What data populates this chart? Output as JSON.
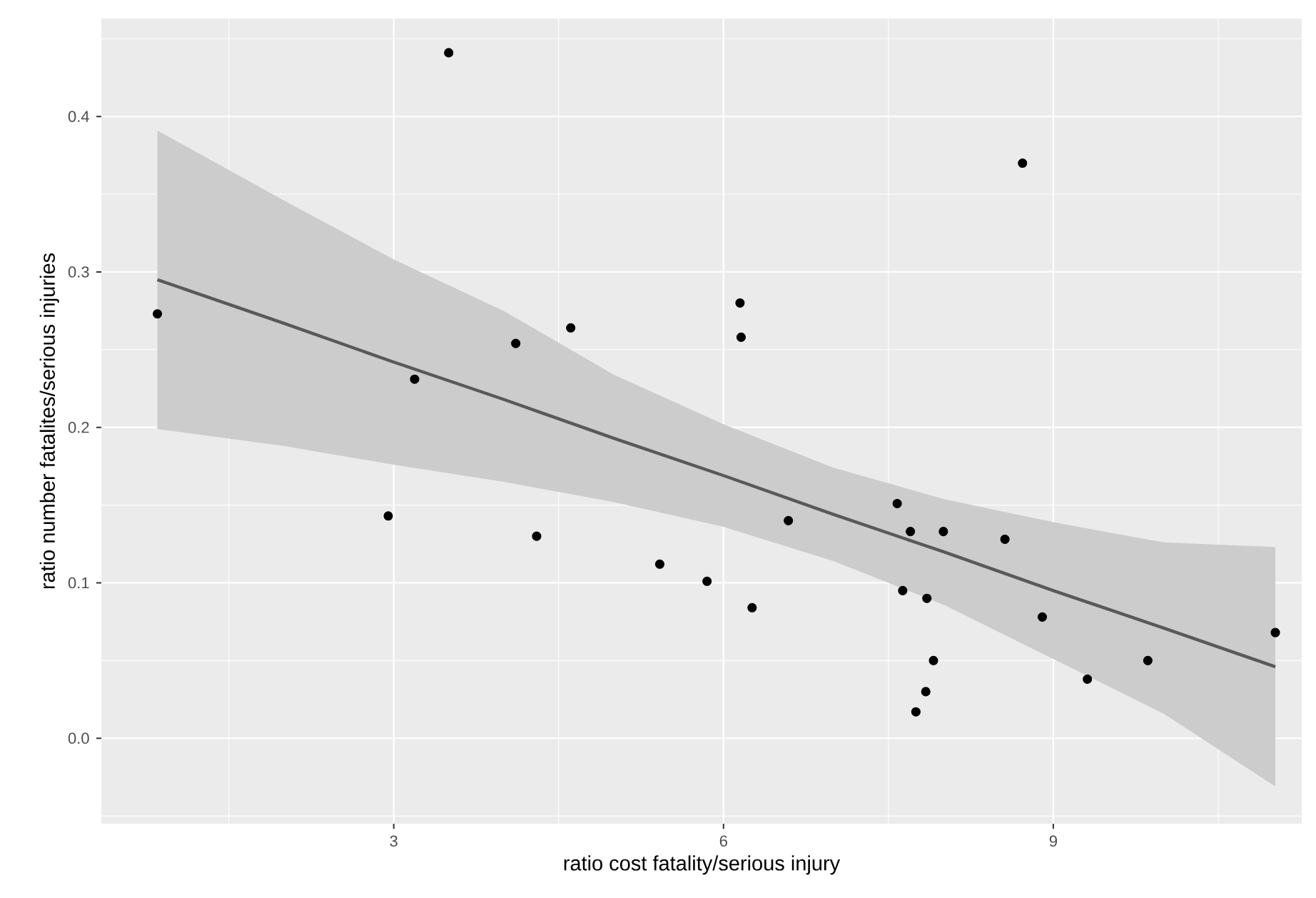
{
  "chart_data": {
    "type": "scatter",
    "xlabel": "ratio cost fatality/serious injury",
    "ylabel": "ratio number fatalites/serious injuries",
    "xlim": [
      0.34,
      11.26
    ],
    "ylim": [
      -0.055,
      0.463
    ],
    "xticks": [
      3,
      6,
      9
    ],
    "yticks": [
      {
        "value": 0,
        "label": "0.0"
      },
      {
        "value": 0.1,
        "label": "0.1"
      },
      {
        "value": 0.2,
        "label": "0.2"
      },
      {
        "value": 0.3,
        "label": "0.3"
      },
      {
        "value": 0.4,
        "label": "0.4"
      }
    ],
    "grid": true,
    "series": [
      {
        "type": "line",
        "color": "#595959",
        "line_style": "solid",
        "marker": "none",
        "x": [
          0.85,
          2,
          3,
          4,
          5,
          6,
          7,
          8,
          9,
          10,
          11.02
        ],
        "values": [
          0.295,
          0.267,
          0.242,
          0.218,
          0.193,
          0.169,
          0.144,
          0.12,
          0.095,
          0.071,
          0.046
        ],
        "lower": [
          0.199,
          0.188,
          0.176,
          0.165,
          0.152,
          0.136,
          0.114,
          0.086,
          0.051,
          0.016,
          -0.031
        ],
        "upper": [
          0.391,
          0.346,
          0.308,
          0.275,
          0.234,
          0.202,
          0.174,
          0.154,
          0.139,
          0.126,
          0.123
        ]
      },
      {
        "type": "scatter",
        "color": "#000000",
        "marker": "circle",
        "x": [
          0.85,
          3.5,
          3.19,
          4.11,
          4.61,
          8.72,
          6.15,
          6.16,
          2.95,
          4.3,
          5.42,
          5.85,
          6.26,
          6.59,
          7.58,
          7.7,
          8.0,
          8.56,
          7.63,
          7.85,
          8.9,
          7.91,
          7.84,
          7.75,
          9.31,
          9.86,
          11.02
        ],
        "values": [
          0.273,
          0.441,
          0.231,
          0.254,
          0.264,
          0.37,
          0.28,
          0.258,
          0.143,
          0.13,
          0.112,
          0.101,
          0.084,
          0.14,
          0.151,
          0.133,
          0.133,
          0.128,
          0.095,
          0.09,
          0.078,
          0.05,
          0.03,
          0.017,
          0.038,
          0.05,
          0.068
        ]
      }
    ]
  }
}
